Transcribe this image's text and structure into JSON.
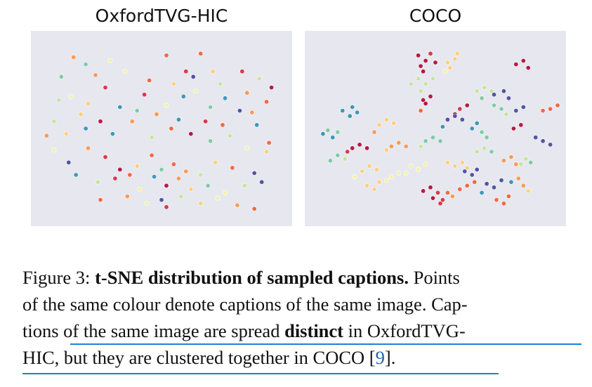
{
  "chart_data": [
    {
      "type": "scatter",
      "title": "OxfordTVG-HIC",
      "xlim": [
        0,
        100
      ],
      "ylim": [
        0,
        100
      ],
      "grid": false,
      "background": "#e6e7ef",
      "points": [
        [
          14,
          90,
          3
        ],
        [
          19,
          86,
          7
        ],
        [
          35,
          82,
          5
        ],
        [
          52,
          91,
          2
        ],
        [
          60,
          82,
          1
        ],
        [
          66,
          92,
          2
        ],
        [
          71,
          82,
          4
        ],
        [
          83,
          82,
          1
        ],
        [
          90,
          78,
          6
        ],
        [
          95,
          73,
          0
        ],
        [
          8,
          66,
          6
        ],
        [
          13,
          68,
          5
        ],
        [
          20,
          64,
          4
        ],
        [
          27,
          73,
          1
        ],
        [
          33,
          62,
          8
        ],
        [
          43,
          69,
          1
        ],
        [
          52,
          63,
          5
        ],
        [
          59,
          68,
          8
        ],
        [
          64,
          71,
          5
        ],
        [
          70,
          62,
          7
        ],
        [
          76,
          67,
          8
        ],
        [
          82,
          60,
          9
        ],
        [
          87,
          59,
          3
        ],
        [
          6,
          54,
          6
        ],
        [
          11,
          47,
          4
        ],
        [
          19,
          50,
          8
        ],
        [
          25,
          54,
          0
        ],
        [
          30,
          47,
          8
        ],
        [
          38,
          54,
          3
        ],
        [
          46,
          45,
          6
        ],
        [
          54,
          50,
          2
        ],
        [
          62,
          47,
          0
        ],
        [
          70,
          43,
          7
        ],
        [
          78,
          46,
          6
        ],
        [
          85,
          39,
          5
        ],
        [
          94,
          42,
          2
        ],
        [
          12,
          31,
          9
        ],
        [
          20,
          39,
          3
        ],
        [
          27,
          34,
          1
        ],
        [
          33,
          27,
          0
        ],
        [
          40,
          29,
          4
        ],
        [
          46,
          35,
          2
        ],
        [
          50,
          27,
          7
        ],
        [
          55,
          30,
          2
        ],
        [
          60,
          26,
          3
        ],
        [
          66,
          24,
          6
        ],
        [
          72,
          31,
          4
        ],
        [
          79,
          28,
          2
        ],
        [
          88,
          25,
          9
        ],
        [
          93,
          37,
          4
        ],
        [
          6,
          38,
          5
        ],
        [
          15,
          24,
          8
        ],
        [
          24,
          20,
          6
        ],
        [
          31,
          22,
          1
        ],
        [
          37,
          24,
          2
        ],
        [
          41,
          16,
          5
        ],
        [
          47,
          23,
          8
        ],
        [
          52,
          18,
          0
        ],
        [
          57,
          22,
          3
        ],
        [
          62,
          16,
          4
        ],
        [
          69,
          18,
          7
        ],
        [
          76,
          14,
          5
        ],
        [
          84,
          18,
          6
        ],
        [
          91,
          20,
          9
        ],
        [
          25,
          10,
          2
        ],
        [
          36,
          12,
          3
        ],
        [
          44,
          8,
          5
        ],
        [
          50,
          10,
          9
        ],
        [
          52,
          6,
          1
        ],
        [
          58,
          12,
          6
        ],
        [
          66,
          8,
          4
        ],
        [
          73,
          11,
          5
        ],
        [
          81,
          7,
          3
        ],
        [
          88,
          5,
          2
        ],
        [
          9,
          79,
          7
        ],
        [
          23,
          80,
          3
        ],
        [
          29,
          88,
          5
        ],
        [
          45,
          77,
          2
        ],
        [
          55,
          75,
          4
        ],
        [
          63,
          79,
          9
        ],
        [
          74,
          75,
          6
        ],
        [
          85,
          70,
          3
        ],
        [
          93,
          65,
          2
        ],
        [
          17,
          58,
          4
        ],
        [
          40,
          60,
          7
        ],
        [
          48,
          58,
          3
        ],
        [
          57,
          55,
          8
        ],
        [
          68,
          54,
          1
        ],
        [
          75,
          52,
          2
        ],
        [
          89,
          52,
          8
        ],
        [
          3,
          46,
          3
        ]
      ]
    },
    {
      "type": "scatter",
      "title": "COCO",
      "xlim": [
        0,
        100
      ],
      "ylim": [
        0,
        100
      ],
      "grid": false,
      "background": "#e6e7ef",
      "points": [
        [
          43,
          91,
          0
        ],
        [
          46,
          88,
          0
        ],
        [
          44,
          85,
          0
        ],
        [
          48,
          92,
          1
        ],
        [
          50,
          87,
          0
        ],
        [
          45,
          82,
          0
        ],
        [
          55,
          87,
          4
        ],
        [
          58,
          89,
          4
        ],
        [
          56,
          84,
          4
        ],
        [
          59,
          92,
          4
        ],
        [
          54,
          82,
          5
        ],
        [
          40,
          75,
          6
        ],
        [
          43,
          78,
          6
        ],
        [
          46,
          75,
          6
        ],
        [
          49,
          78,
          6
        ],
        [
          44,
          71,
          6
        ],
        [
          45,
          66,
          0
        ],
        [
          48,
          68,
          0
        ],
        [
          46,
          64,
          0
        ],
        [
          44,
          60,
          2
        ],
        [
          60,
          61,
          1
        ],
        [
          63,
          63,
          0
        ],
        [
          58,
          58,
          0
        ],
        [
          12,
          60,
          8
        ],
        [
          15,
          57,
          8
        ],
        [
          18,
          59,
          8
        ],
        [
          16,
          62,
          8
        ],
        [
          27,
          52,
          4
        ],
        [
          30,
          55,
          4
        ],
        [
          33,
          53,
          4
        ],
        [
          25,
          48,
          3
        ],
        [
          4,
          47,
          8
        ],
        [
          8,
          45,
          8
        ],
        [
          6,
          49,
          7
        ],
        [
          10,
          48,
          7
        ],
        [
          16,
          39,
          0
        ],
        [
          19,
          41,
          0
        ],
        [
          22,
          39,
          0
        ],
        [
          14,
          37,
          1
        ],
        [
          7,
          32,
          7
        ],
        [
          10,
          35,
          7
        ],
        [
          13,
          33,
          6
        ],
        [
          20,
          26,
          4
        ],
        [
          23,
          29,
          4
        ],
        [
          26,
          27,
          4
        ],
        [
          17,
          23,
          5
        ],
        [
          32,
          40,
          3
        ],
        [
          35,
          42,
          3
        ],
        [
          38,
          40,
          3
        ],
        [
          30,
          38,
          4
        ],
        [
          40,
          29,
          5
        ],
        [
          43,
          27,
          5
        ],
        [
          46,
          30,
          5
        ],
        [
          38,
          25,
          5
        ],
        [
          46,
          43,
          7
        ],
        [
          49,
          45,
          7
        ],
        [
          52,
          43,
          7
        ],
        [
          44,
          40,
          6
        ],
        [
          55,
          55,
          9
        ],
        [
          58,
          57,
          9
        ],
        [
          61,
          55,
          9
        ],
        [
          53,
          51,
          8
        ],
        [
          65,
          50,
          8
        ],
        [
          67,
          53,
          8
        ],
        [
          69,
          48,
          7
        ],
        [
          71,
          45,
          7
        ],
        [
          67,
          71,
          6
        ],
        [
          70,
          73,
          6
        ],
        [
          73,
          71,
          6
        ],
        [
          69,
          67,
          7
        ],
        [
          74,
          63,
          7
        ],
        [
          77,
          61,
          7
        ],
        [
          79,
          58,
          6
        ],
        [
          74,
          69,
          9
        ],
        [
          78,
          71,
          9
        ],
        [
          80,
          67,
          9
        ],
        [
          83,
          60,
          9
        ],
        [
          86,
          62,
          9
        ],
        [
          82,
          50,
          0
        ],
        [
          85,
          52,
          0
        ],
        [
          83,
          86,
          0
        ],
        [
          86,
          88,
          0
        ],
        [
          88,
          84,
          0
        ],
        [
          97,
          61,
          2
        ],
        [
          100,
          63,
          2
        ],
        [
          94,
          60,
          2
        ],
        [
          94,
          43,
          9
        ],
        [
          97,
          41,
          9
        ],
        [
          91,
          45,
          9
        ],
        [
          67,
          37,
          6
        ],
        [
          70,
          39,
          6
        ],
        [
          73,
          37,
          7
        ],
        [
          78,
          32,
          3
        ],
        [
          81,
          34,
          3
        ],
        [
          83,
          30,
          3
        ],
        [
          85,
          30,
          6
        ],
        [
          87,
          33,
          6
        ],
        [
          89,
          31,
          7
        ],
        [
          55,
          31,
          4
        ],
        [
          58,
          29,
          4
        ],
        [
          61,
          31,
          4
        ],
        [
          63,
          28,
          4
        ],
        [
          60,
          16,
          2
        ],
        [
          63,
          18,
          2
        ],
        [
          66,
          20,
          2
        ],
        [
          57,
          12,
          3
        ],
        [
          45,
          15,
          0
        ],
        [
          48,
          17,
          0
        ],
        [
          51,
          14,
          1
        ],
        [
          53,
          10,
          1
        ],
        [
          71,
          19,
          9
        ],
        [
          74,
          17,
          9
        ],
        [
          77,
          21,
          9
        ],
        [
          69,
          14,
          8
        ],
        [
          81,
          20,
          8
        ],
        [
          84,
          22,
          3
        ],
        [
          86,
          18,
          3
        ],
        [
          88,
          15,
          4
        ],
        [
          75,
          10,
          2
        ],
        [
          78,
          8,
          2
        ],
        [
          80,
          12,
          2
        ],
        [
          22,
          18,
          4
        ],
        [
          25,
          16,
          4
        ],
        [
          27,
          20,
          4
        ],
        [
          32,
          23,
          5
        ],
        [
          35,
          25,
          5
        ],
        [
          30,
          21,
          5
        ],
        [
          49,
          11,
          0
        ],
        [
          52,
          8,
          1
        ],
        [
          55,
          14,
          2
        ],
        [
          62,
          26,
          9
        ],
        [
          65,
          24,
          9
        ],
        [
          67,
          27,
          9
        ]
      ]
    }
  ],
  "caption": {
    "line1_prefix": "Figure 3: ",
    "line1_bold": "t-SNE distribution of sampled captions.",
    "line1_suffix": " Points",
    "line2": "of the same colour denote captions of the same image. Cap-",
    "line3_prefix": "tions of the same image are spread ",
    "line3_bold": "distinct",
    "line3_suffix": " in OxfordTVG-",
    "line4_prefix": "HIC, but they are clustered together in COCO [",
    "line4_ref": "9",
    "line4_suffix": "]."
  },
  "palette": [
    "#b51a42",
    "#d8394d",
    "#ef6a44",
    "#f99a57",
    "#fcd07e",
    "#f5f0a8",
    "#c6e59d",
    "#80cba6",
    "#3f97b8",
    "#5454a2"
  ]
}
